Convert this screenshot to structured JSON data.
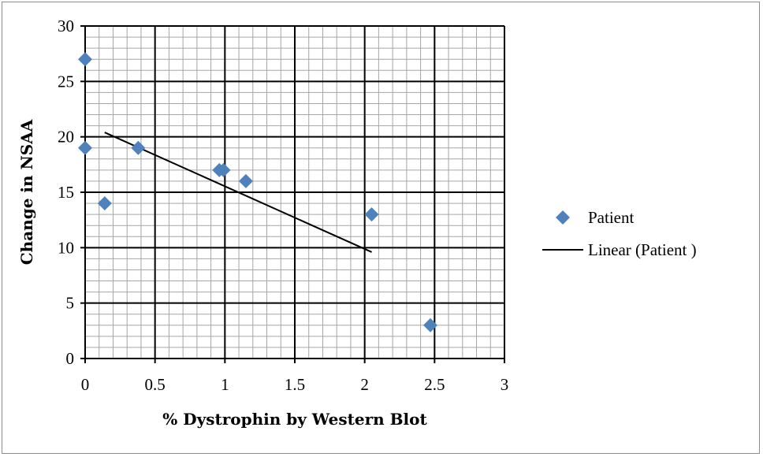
{
  "chart_data": {
    "type": "scatter",
    "xlabel": "% Dystrophin by Western Blot",
    "ylabel": "Change in NSAA",
    "xlim": [
      0,
      3
    ],
    "ylim": [
      0,
      30
    ],
    "x_ticks": [
      "0",
      "0.5",
      "1",
      "1.5",
      "2",
      "2.5",
      "3"
    ],
    "y_ticks": [
      "0",
      "5",
      "10",
      "15",
      "20",
      "25",
      "30"
    ],
    "x_tick_values": [
      0,
      0.5,
      1,
      1.5,
      2,
      2.5,
      3
    ],
    "y_tick_values": [
      0,
      5,
      10,
      15,
      20,
      25,
      30
    ],
    "grid": true,
    "minor_grid_step": {
      "x": 0.1,
      "y": 1
    },
    "legend_position": "right",
    "series": [
      {
        "name": "Patient",
        "marker": "diamond",
        "color": "#4f81bd",
        "points": [
          {
            "x": 0,
            "y": 27
          },
          {
            "x": 0,
            "y": 19
          },
          {
            "x": 0.14,
            "y": 14
          },
          {
            "x": 0.38,
            "y": 19
          },
          {
            "x": 0.96,
            "y": 17
          },
          {
            "x": 0.99,
            "y": 17
          },
          {
            "x": 1.15,
            "y": 16
          },
          {
            "x": 2.05,
            "y": 13
          },
          {
            "x": 2.47,
            "y": 3
          }
        ]
      }
    ],
    "trendline": {
      "name": "Linear (Patient )",
      "type": "linear",
      "color": "#000000",
      "start": {
        "x": 0.14,
        "y": 20.4
      },
      "end": {
        "x": 2.05,
        "y": 9.6
      }
    }
  }
}
